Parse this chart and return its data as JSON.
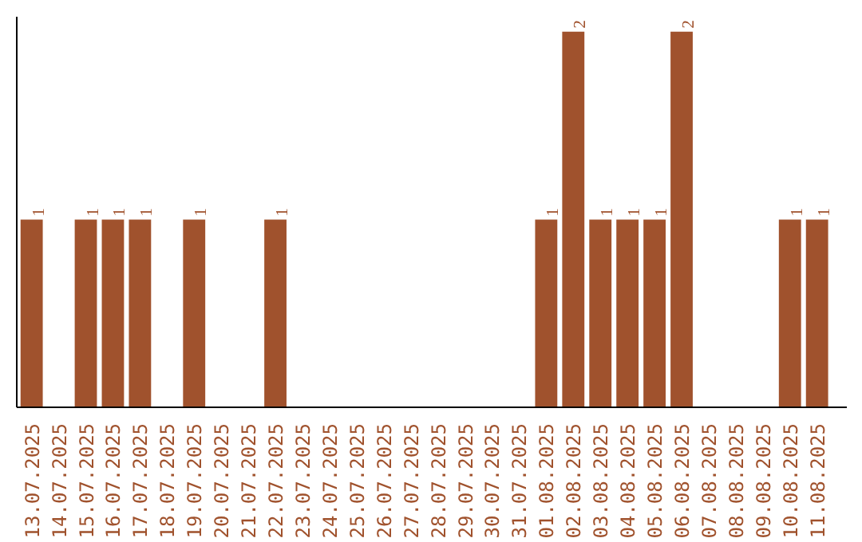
{
  "chart_data": {
    "type": "bar",
    "categories": [
      "13.07.2025",
      "14.07.2025",
      "15.07.2025",
      "16.07.2025",
      "17.07.2025",
      "18.07.2025",
      "19.07.2025",
      "20.07.2025",
      "21.07.2025",
      "22.07.2025",
      "23.07.2025",
      "24.07.2025",
      "25.07.2025",
      "26.07.2025",
      "27.07.2025",
      "28.07.2025",
      "29.07.2025",
      "30.07.2025",
      "31.07.2025",
      "01.08.2025",
      "02.08.2025",
      "03.08.2025",
      "04.08.2025",
      "05.08.2025",
      "06.08.2025",
      "07.08.2025",
      "08.08.2025",
      "09.08.2025",
      "10.08.2025",
      "11.08.2025"
    ],
    "values": [
      1,
      0,
      1,
      1,
      1,
      0,
      1,
      0,
      0,
      1,
      0,
      0,
      0,
      0,
      0,
      0,
      0,
      0,
      0,
      1,
      2,
      1,
      1,
      1,
      2,
      0,
      0,
      0,
      1,
      1
    ],
    "value_labels": [
      "1",
      null,
      "1",
      "1",
      "1",
      null,
      "1",
      null,
      null,
      "1",
      null,
      null,
      null,
      null,
      null,
      null,
      null,
      null,
      null,
      "1",
      "2",
      "1",
      "1",
      "1",
      "2",
      null,
      null,
      null,
      "1",
      "1"
    ],
    "color": "#a0522d",
    "ylim": [
      0,
      2.08
    ],
    "tick_labels": "x",
    "grid": false
  }
}
